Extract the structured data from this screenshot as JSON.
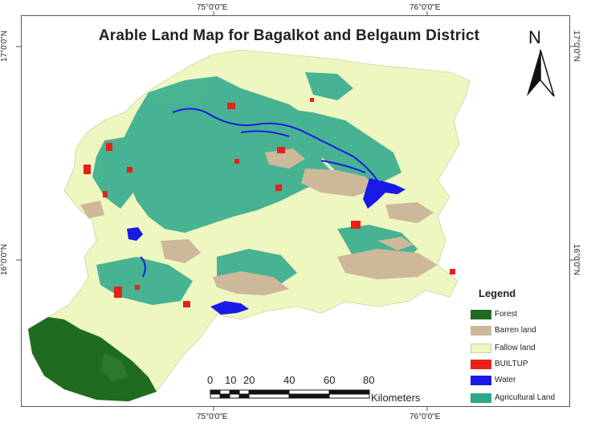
{
  "title": "Arable Land Map for Bagalkot and Belgaum District",
  "grid_labels": {
    "top_lon_1": "75°0'0\"E",
    "top_lon_2": "76°0'0\"E",
    "bottom_lon_1": "75°0'0\"E",
    "bottom_lon_2": "76°0'0\"E",
    "left_lat_1": "17°0'0\"N",
    "left_lat_2": "16°0'0\"N",
    "right_lat_1": "17°0'0\"N",
    "right_lat_2": "16°0'0\"N"
  },
  "north_arrow": {
    "letter": "N",
    "icon": "north-arrow-icon"
  },
  "legend": {
    "title": "Legend",
    "items": [
      {
        "label": "Forest",
        "color": "#1f6b1f"
      },
      {
        "label": "Barren land",
        "color": "#cdb89a"
      },
      {
        "label": "Fallow land",
        "color": "#eef7c0"
      },
      {
        "label": "BUILTUP",
        "color": "#e8201a"
      },
      {
        "label": "Water",
        "color": "#1a1ae6"
      },
      {
        "label": "Agricultural Land",
        "color": "#2aa88a"
      }
    ]
  },
  "scale_bar": {
    "ticks": [
      "0",
      "10",
      "20",
      "40",
      "60",
      "80"
    ],
    "unit": "Kilometers"
  },
  "colors": {
    "forest": "#1f6b1f",
    "barren": "#cdb89a",
    "fallow": "#eef7c0",
    "builtup": "#e8201a",
    "water": "#1a1ae6",
    "agri": "#2aa88a"
  }
}
